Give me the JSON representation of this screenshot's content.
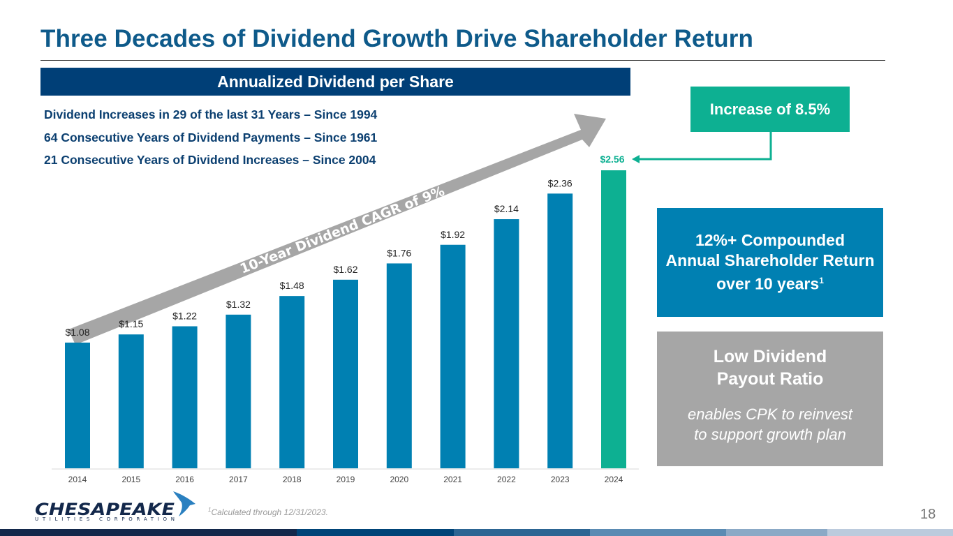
{
  "title": "Three Decades of Dividend Growth Drive Shareholder Return",
  "chart_header": "Annualized Dividend per Share",
  "facts": [
    "Dividend Increases in 29 of the last 31 Years – Since 1994",
    "64 Consecutive Years of Dividend Payments – Since 1961",
    "21 Consecutive Years of Dividend Increases – Since 2004"
  ],
  "callouts": {
    "increase": "Increase of 8.5%",
    "return_lines": [
      "12%+ Compounded",
      "Annual Shareholder Return",
      "over 10 years"
    ],
    "return_footnote_mark": "1",
    "payout_title_lines": [
      "Low Dividend",
      "Payout Ratio"
    ],
    "payout_sub_lines": [
      "enables CPK to reinvest",
      "to support growth plan"
    ]
  },
  "footnote": {
    "mark": "1",
    "text": "Calculated through 12/31/2023."
  },
  "page_number": "18",
  "logo": {
    "name": "CHESAPEAKE",
    "sub": "UTILITIES CORPORATION"
  },
  "colors": {
    "title": "#0e5a8a",
    "header_bg": "#003f77",
    "bar": "#0080b2",
    "highlight_bar": "#0db092",
    "arrow": "#a6a6a6",
    "payout_box": "#a6a6a6",
    "footer_segments": [
      "#13284b",
      "#004478",
      "#2c6593",
      "#5a8bb3",
      "#8ba9c6",
      "#bccbdd"
    ]
  },
  "chart_data": {
    "type": "bar",
    "title": "Annualized Dividend per Share",
    "categories": [
      "2014",
      "2015",
      "2016",
      "2017",
      "2018",
      "2019",
      "2020",
      "2021",
      "2022",
      "2023",
      "2024"
    ],
    "values": [
      1.08,
      1.15,
      1.22,
      1.32,
      1.48,
      1.62,
      1.76,
      1.92,
      2.14,
      2.36,
      2.56
    ],
    "labels": [
      "$1.08",
      "$1.15",
      "$1.22",
      "$1.32",
      "$1.48",
      "$1.62",
      "$1.76",
      "$1.92",
      "$2.14",
      "$2.36",
      "$2.56"
    ],
    "highlight_index": 10,
    "xlabel": "",
    "ylabel": "",
    "ylim": [
      0,
      2.56
    ],
    "grid": false,
    "legend": "none",
    "annotations": [
      "10-Year Dividend CAGR of 9%"
    ]
  }
}
